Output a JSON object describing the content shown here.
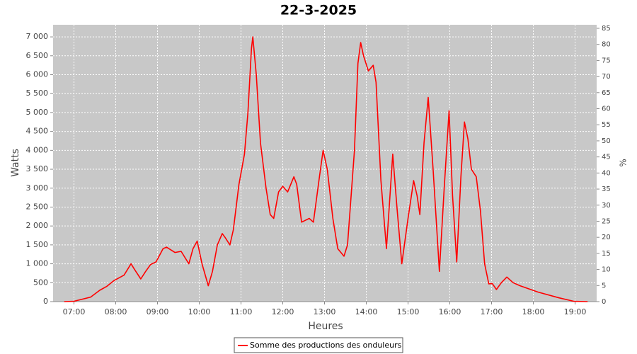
{
  "chart_data": {
    "type": "line",
    "title": "22-3-2025",
    "x_label": "Heures",
    "y_label": "Watts",
    "y2_label": "%",
    "x": [
      406,
      420,
      444,
      457,
      467,
      477,
      492,
      502,
      507,
      516,
      523,
      530,
      538,
      548,
      553,
      565,
      574,
      585,
      591,
      597,
      604,
      613,
      619,
      626,
      633,
      637,
      644,
      649,
      657,
      665,
      670,
      675,
      677,
      682,
      688,
      696,
      702,
      707,
      714,
      720,
      727,
      736,
      740,
      747,
      758,
      764,
      772,
      778,
      784,
      792,
      799,
      808,
      813,
      823,
      828,
      832,
      836,
      843,
      850,
      854,
      861,
      869,
      878,
      884,
      891,
      900,
      908,
      913,
      917,
      923,
      929,
      936,
      945,
      952,
      959,
      964,
      970,
      976,
      981,
      986,
      991,
      998,
      1004,
      1010,
      1016,
      1021,
      1027,
      1034,
      1042,
      1051,
      1061,
      1087,
      1117,
      1138,
      1158
    ],
    "series": [
      {
        "name": "Somme des productions des onduleurs",
        "color": "#ff0000",
        "values": [
          0,
          10,
          120,
          300,
          400,
          550,
          700,
          1000,
          850,
          600,
          800,
          980,
          1050,
          1400,
          1440,
          1300,
          1330,
          1000,
          1400,
          1600,
          1000,
          420,
          800,
          1500,
          1800,
          1700,
          1500,
          1900,
          3100,
          3900,
          5000,
          6700,
          7000,
          6000,
          4200,
          3000,
          2300,
          2200,
          2900,
          3050,
          2900,
          3300,
          3100,
          2100,
          2200,
          2100,
          3200,
          4000,
          3500,
          2200,
          1400,
          1200,
          1500,
          4000,
          6300,
          6850,
          6500,
          6100,
          6250,
          5800,
          3200,
          1400,
          3900,
          2500,
          1000,
          2200,
          3200,
          2800,
          2300,
          4200,
          5400,
          3500,
          800,
          3000,
          5050,
          2800,
          1050,
          3300,
          4750,
          4300,
          3500,
          3300,
          2400,
          1000,
          470,
          480,
          320,
          500,
          650,
          500,
          420,
          250,
          100,
          10,
          0
        ]
      }
    ],
    "xlim": [
      390,
      1171
    ],
    "xticks": [
      {
        "value": 420,
        "label": "07:00"
      },
      {
        "value": 480,
        "label": "08:00"
      },
      {
        "value": 540,
        "label": "09:00"
      },
      {
        "value": 600,
        "label": "10:00"
      },
      {
        "value": 660,
        "label": "11:00"
      },
      {
        "value": 720,
        "label": "12:00"
      },
      {
        "value": 780,
        "label": "13:00"
      },
      {
        "value": 840,
        "label": "14:00"
      },
      {
        "value": 900,
        "label": "15:00"
      },
      {
        "value": 960,
        "label": "16:00"
      },
      {
        "value": 1020,
        "label": "17:00"
      },
      {
        "value": 1080,
        "label": "18:00"
      },
      {
        "value": 1140,
        "label": "19:00"
      }
    ],
    "ylim": [
      0,
      7320
    ],
    "yticks": [
      0,
      500,
      {
        "value": 1000,
        "label": "1 000"
      },
      {
        "value": 1500,
        "label": "1 500"
      },
      {
        "value": 2000,
        "label": "2 000"
      },
      {
        "value": 2500,
        "label": "2 500"
      },
      {
        "value": 3000,
        "label": "3 000"
      },
      {
        "value": 3500,
        "label": "3 500"
      },
      {
        "value": 4000,
        "label": "4 000"
      },
      {
        "value": 4500,
        "label": "4 500"
      },
      {
        "value": 5000,
        "label": "5 000"
      },
      {
        "value": 5500,
        "label": "5 500"
      },
      {
        "value": 6000,
        "label": "6 000"
      },
      {
        "value": 6500,
        "label": "6 500"
      },
      {
        "value": 7000,
        "label": "7 000"
      }
    ],
    "y2lim": [
      0,
      86.1
    ],
    "y2ticks": [
      0,
      5,
      10,
      15,
      20,
      25,
      30,
      35,
      40,
      45,
      50,
      55,
      60,
      65,
      70,
      75,
      80,
      85
    ],
    "grid": true,
    "legend": "bottom"
  }
}
